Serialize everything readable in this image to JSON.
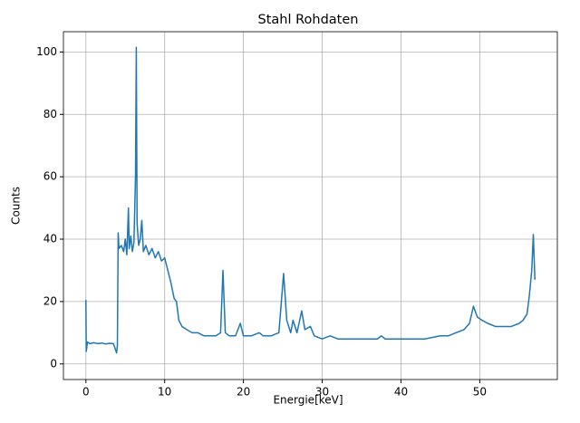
{
  "chart_data": {
    "type": "line",
    "title": "Stahl Rohdaten",
    "x_label": "Energie[keV]",
    "y_label": "Counts",
    "x": [
      0,
      0.05,
      0.2,
      0.5,
      1,
      1.5,
      2,
      2.5,
      3,
      3.5,
      3.9,
      4.0,
      4.1,
      4.2,
      4.5,
      4.8,
      5.0,
      5.2,
      5.4,
      5.5,
      5.7,
      5.9,
      6.1,
      6.3,
      6.4,
      6.5,
      6.7,
      6.9,
      7.1,
      7.3,
      7.6,
      8.0,
      8.4,
      8.8,
      9.2,
      9.6,
      10.0,
      10.4,
      10.8,
      11.2,
      11.5,
      11.8,
      12.2,
      12.8,
      13.5,
      14.2,
      15,
      15.8,
      16.5,
      17.1,
      17.4,
      17.7,
      18.2,
      19,
      19.6,
      20,
      21,
      22,
      22.5,
      23.5,
      24.5,
      25.1,
      25.5,
      26,
      26.3,
      26.8,
      27.4,
      27.8,
      28.5,
      29,
      30,
      31,
      32,
      33,
      34,
      35,
      36,
      37,
      37.5,
      38,
      39,
      40,
      41,
      42,
      43,
      44,
      45,
      46,
      47,
      48,
      48.7,
      49.2,
      49.7,
      50.3,
      51,
      52,
      53,
      54,
      55,
      55.5,
      56,
      56.3,
      56.6,
      56.8,
      57
    ],
    "series": [
      {
        "color": "#1f77b4",
        "values": [
          20.5,
          4,
          7,
          6.5,
          6.8,
          6.5,
          6.7,
          6.4,
          6.6,
          6.5,
          3.5,
          6,
          42,
          37,
          38,
          36,
          40,
          35,
          50,
          37,
          41,
          36,
          39,
          60,
          101.5,
          45,
          38,
          40,
          46,
          36,
          38,
          35,
          37,
          34,
          36,
          33,
          34,
          30,
          26,
          21,
          20,
          14,
          12,
          11,
          10,
          10,
          9,
          9,
          9,
          10,
          30,
          10,
          9,
          9,
          13,
          9,
          9,
          10,
          9,
          9,
          10,
          29,
          14,
          10,
          14,
          10,
          17,
          11,
          12,
          9,
          8,
          9,
          8,
          8,
          8,
          8,
          8,
          8,
          9,
          8,
          8,
          8,
          8,
          8,
          8,
          8.5,
          9,
          9,
          10,
          11,
          13,
          18.5,
          15,
          14,
          13,
          12,
          12,
          12,
          13,
          14,
          16,
          22,
          30,
          41.5,
          27
        ]
      }
    ],
    "xlim": [
      -2.85,
      59.85
    ],
    "ylim": [
      -5,
      106.5
    ],
    "xticks": [
      0,
      10,
      20,
      30,
      40,
      50
    ],
    "yticks": [
      0,
      20,
      40,
      60,
      80,
      100
    ],
    "grid": true
  }
}
